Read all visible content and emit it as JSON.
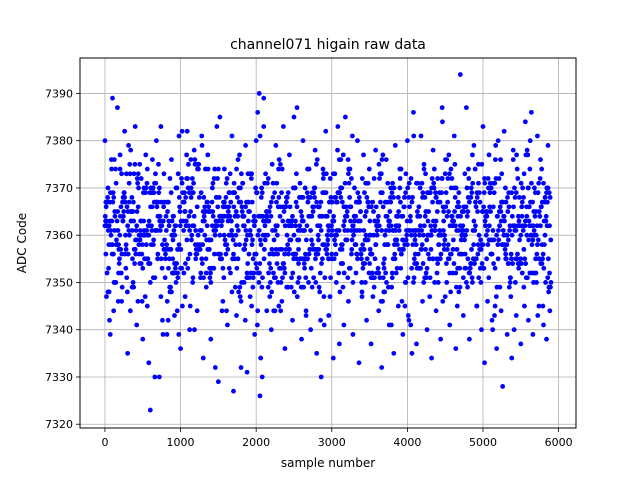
{
  "chart_data": {
    "type": "scatter",
    "title": "channel071 higain raw data",
    "xlabel": "sample number",
    "ylabel": "ADC Code",
    "xlim": [
      -330,
      6230
    ],
    "ylim": [
      7319.2,
      7397.5
    ],
    "xticks": [
      0,
      1000,
      2000,
      3000,
      4000,
      5000,
      6000
    ],
    "yticks": [
      7320,
      7330,
      7340,
      7350,
      7360,
      7370,
      7380,
      7390
    ],
    "grid": true,
    "marker_color": "#0000ff",
    "series": [
      {
        "n_points": 5900,
        "description_note": "",
        "points": [
          [
            0,
            7380
          ],
          [
            12,
            7356
          ],
          [
            25,
            7362
          ],
          [
            40,
            7370
          ],
          [
            55,
            7348
          ],
          [
            70,
            7339
          ],
          [
            85,
            7376
          ],
          [
            100,
            7389
          ],
          [
            115,
            7344
          ],
          [
            130,
            7365
          ],
          [
            150,
            7358
          ],
          [
            165,
            7387
          ],
          [
            180,
            7352
          ],
          [
            200,
            7374
          ],
          [
            220,
            7346
          ],
          [
            240,
            7368
          ],
          [
            260,
            7382
          ],
          [
            280,
            7357
          ],
          [
            300,
            7335
          ],
          [
            320,
            7371
          ],
          [
            340,
            7378
          ],
          [
            360,
            7349
          ],
          [
            380,
            7363
          ],
          [
            400,
            7383
          ],
          [
            420,
            7341
          ],
          [
            440,
            7366
          ],
          [
            460,
            7354
          ],
          [
            480,
            7372
          ],
          [
            500,
            7338
          ],
          [
            520,
            7360
          ],
          [
            540,
            7377
          ],
          [
            560,
            7345
          ],
          [
            580,
            7333
          ],
          [
            600,
            7323
          ],
          [
            620,
            7369
          ],
          [
            640,
            7351
          ],
          [
            660,
            7330
          ],
          [
            680,
            7380
          ],
          [
            700,
            7364
          ],
          [
            720,
            7330
          ],
          [
            740,
            7383
          ],
          [
            760,
            7342
          ],
          [
            780,
            7373
          ],
          [
            800,
            7356
          ],
          [
            820,
            7339
          ],
          [
            840,
            7367
          ],
          [
            860,
            7348
          ],
          [
            880,
            7376
          ],
          [
            900,
            7359
          ],
          [
            920,
            7343
          ],
          [
            940,
            7370
          ],
          [
            960,
            7352
          ],
          [
            980,
            7381
          ],
          [
            1000,
            7336
          ],
          [
            1020,
            7382
          ],
          [
            1040,
            7363
          ],
          [
            1060,
            7347
          ],
          [
            1080,
            7372
          ],
          [
            1100,
            7355
          ],
          [
            1120,
            7340
          ],
          [
            1140,
            7368
          ],
          [
            1160,
            7350
          ],
          [
            1180,
            7378
          ],
          [
            1200,
            7361
          ],
          [
            1220,
            7344
          ],
          [
            1240,
            7375
          ],
          [
            1260,
            7357
          ],
          [
            1280,
            7381
          ],
          [
            1300,
            7334
          ],
          [
            1320,
            7366
          ],
          [
            1340,
            7349
          ],
          [
            1360,
            7377
          ],
          [
            1380,
            7359
          ],
          [
            1400,
            7338
          ],
          [
            1420,
            7370
          ],
          [
            1440,
            7353
          ],
          [
            1460,
            7332
          ],
          [
            1480,
            7383
          ],
          [
            1500,
            7329
          ],
          [
            1520,
            7385
          ],
          [
            1540,
            7362
          ],
          [
            1560,
            7346
          ],
          [
            1580,
            7374
          ],
          [
            1600,
            7356
          ],
          [
            1620,
            7341
          ],
          [
            1640,
            7369
          ],
          [
            1660,
            7352
          ],
          [
            1680,
            7381
          ],
          [
            1700,
            7327
          ],
          [
            1720,
            7364
          ],
          [
            1740,
            7343
          ],
          [
            1760,
            7376
          ],
          [
            1780,
            7358
          ],
          [
            1800,
            7332
          ],
          [
            1820,
            7371
          ],
          [
            1840,
            7350
          ],
          [
            1860,
            7379
          ],
          [
            1880,
            7331
          ],
          [
            1900,
            7365
          ],
          [
            1920,
            7347
          ],
          [
            1940,
            7373
          ],
          [
            1960,
            7355
          ],
          [
            1980,
            7339
          ],
          [
            2000,
            7380
          ],
          [
            2020,
            7386
          ],
          [
            2040,
            7390
          ],
          [
            2050,
            7326
          ],
          [
            2060,
            7334
          ],
          [
            2080,
            7330
          ],
          [
            2100,
            7389
          ],
          [
            2120,
            7360
          ],
          [
            2140,
            7344
          ],
          [
            2160,
            7372
          ],
          [
            2180,
            7356
          ],
          [
            2200,
            7340
          ],
          [
            2220,
            7368
          ],
          [
            2240,
            7351
          ],
          [
            2260,
            7379
          ],
          [
            2280,
            7362
          ],
          [
            2300,
            7345
          ],
          [
            2320,
            7375
          ],
          [
            2340,
            7357
          ],
          [
            2360,
            7383
          ],
          [
            2380,
            7336
          ],
          [
            2400,
            7367
          ],
          [
            2420,
            7349
          ],
          [
            2440,
            7377
          ],
          [
            2460,
            7359
          ],
          [
            2480,
            7342
          ],
          [
            2500,
            7385
          ],
          [
            2520,
            7363
          ],
          [
            2540,
            7387
          ],
          [
            2560,
            7354
          ],
          [
            2580,
            7371
          ],
          [
            2600,
            7338
          ],
          [
            2620,
            7380
          ],
          [
            2640,
            7361
          ],
          [
            2660,
            7344
          ],
          [
            2680,
            7374
          ],
          [
            2700,
            7356
          ],
          [
            2720,
            7340
          ],
          [
            2740,
            7369
          ],
          [
            2760,
            7351
          ],
          [
            2780,
            7378
          ],
          [
            2800,
            7335
          ],
          [
            2820,
            7366
          ],
          [
            2840,
            7348
          ],
          [
            2860,
            7330
          ],
          [
            2880,
            7358
          ],
          [
            2900,
            7341
          ],
          [
            2920,
            7382
          ],
          [
            2940,
            7360
          ],
          [
            2960,
            7343
          ],
          [
            2980,
            7372
          ],
          [
            3000,
            7355
          ],
          [
            3020,
            7334
          ],
          [
            3040,
            7368
          ],
          [
            3060,
            7350
          ],
          [
            3080,
            7383
          ],
          [
            3100,
            7337
          ],
          [
            3120,
            7376
          ],
          [
            3140,
            7358
          ],
          [
            3160,
            7341
          ],
          [
            3180,
            7385
          ],
          [
            3200,
            7364
          ],
          [
            3220,
            7346
          ],
          [
            3240,
            7374
          ],
          [
            3260,
            7356
          ],
          [
            3280,
            7339
          ],
          [
            3300,
            7370
          ],
          [
            3320,
            7352
          ],
          [
            3340,
            7380
          ],
          [
            3360,
            7333
          ],
          [
            3380,
            7365
          ],
          [
            3400,
            7347
          ],
          [
            3420,
            7377
          ],
          [
            3440,
            7359
          ],
          [
            3460,
            7342
          ],
          [
            3480,
            7371
          ],
          [
            3500,
            7354
          ],
          [
            3520,
            7337
          ],
          [
            3540,
            7367
          ],
          [
            3560,
            7349
          ],
          [
            3580,
            7378
          ],
          [
            3600,
            7361
          ],
          [
            3620,
            7344
          ],
          [
            3640,
            7373
          ],
          [
            3660,
            7332
          ],
          [
            3680,
            7366
          ],
          [
            3700,
            7348
          ],
          [
            3720,
            7376
          ],
          [
            3740,
            7358
          ],
          [
            3760,
            7341
          ],
          [
            3780,
            7370
          ],
          [
            3800,
            7352
          ],
          [
            3820,
            7335
          ],
          [
            3840,
            7379
          ],
          [
            3860,
            7362
          ],
          [
            3880,
            7345
          ],
          [
            3900,
            7374
          ],
          [
            3920,
            7356
          ],
          [
            3940,
            7339
          ],
          [
            3960,
            7368
          ],
          [
            3980,
            7350
          ],
          [
            4000,
            7380
          ],
          [
            4020,
            7342
          ],
          [
            4040,
            7364
          ],
          [
            4060,
            7335
          ],
          [
            4080,
            7386
          ],
          [
            4100,
            7359
          ],
          [
            4120,
            7337
          ],
          [
            4140,
            7371
          ],
          [
            4160,
            7353
          ],
          [
            4180,
            7381
          ],
          [
            4200,
            7346
          ],
          [
            4220,
            7375
          ],
          [
            4240,
            7357
          ],
          [
            4260,
            7340
          ],
          [
            4280,
            7369
          ],
          [
            4300,
            7351
          ],
          [
            4320,
            7334
          ],
          [
            4340,
            7378
          ],
          [
            4360,
            7361
          ],
          [
            4380,
            7344
          ],
          [
            4400,
            7372
          ],
          [
            4420,
            7355
          ],
          [
            4440,
            7338
          ],
          [
            4460,
            7387
          ],
          [
            4480,
            7363
          ],
          [
            4500,
            7347
          ],
          [
            4520,
            7376
          ],
          [
            4540,
            7358
          ],
          [
            4560,
            7341
          ],
          [
            4580,
            7370
          ],
          [
            4600,
            7352
          ],
          [
            4620,
            7381
          ],
          [
            4640,
            7336
          ],
          [
            4660,
            7366
          ],
          [
            4680,
            7348
          ],
          [
            4700,
            7394
          ],
          [
            4720,
            7360
          ],
          [
            4740,
            7343
          ],
          [
            4760,
            7373
          ],
          [
            4780,
            7387
          ],
          [
            4800,
            7355
          ],
          [
            4820,
            7338
          ],
          [
            4840,
            7368
          ],
          [
            4860,
            7350
          ],
          [
            4880,
            7379
          ],
          [
            4900,
            7362
          ],
          [
            4920,
            7345
          ],
          [
            4940,
            7375
          ],
          [
            4960,
            7357
          ],
          [
            4980,
            7340
          ],
          [
            5000,
            7383
          ],
          [
            5020,
            7333
          ],
          [
            5040,
            7364
          ],
          [
            5060,
            7346
          ],
          [
            5080,
            7377
          ],
          [
            5100,
            7359
          ],
          [
            5120,
            7342
          ],
          [
            5140,
            7371
          ],
          [
            5160,
            7353
          ],
          [
            5180,
            7336
          ],
          [
            5200,
            7380
          ],
          [
            5220,
            7362
          ],
          [
            5240,
            7344
          ],
          [
            5260,
            7328
          ],
          [
            5280,
            7382
          ],
          [
            5300,
            7356
          ],
          [
            5320,
            7339
          ],
          [
            5340,
            7369
          ],
          [
            5360,
            7351
          ],
          [
            5380,
            7334
          ],
          [
            5400,
            7378
          ],
          [
            5420,
            7361
          ],
          [
            5440,
            7343
          ],
          [
            5460,
            7372
          ],
          [
            5480,
            7354
          ],
          [
            5500,
            7337
          ],
          [
            5520,
            7367
          ],
          [
            5540,
            7349
          ],
          [
            5560,
            7384
          ],
          [
            5580,
            7360
          ],
          [
            5600,
            7342
          ],
          [
            5620,
            7374
          ],
          [
            5640,
            7386
          ],
          [
            5660,
            7339
          ],
          [
            5680,
            7370
          ],
          [
            5700,
            7352
          ],
          [
            5720,
            7381
          ],
          [
            5740,
            7345
          ],
          [
            5760,
            7376
          ],
          [
            5780,
            7358
          ],
          [
            5800,
            7341
          ],
          [
            5820,
            7368
          ],
          [
            5840,
            7338
          ],
          [
            5860,
            7379
          ],
          [
            5880,
            7362
          ],
          [
            5899,
            7350
          ]
        ]
      }
    ]
  }
}
